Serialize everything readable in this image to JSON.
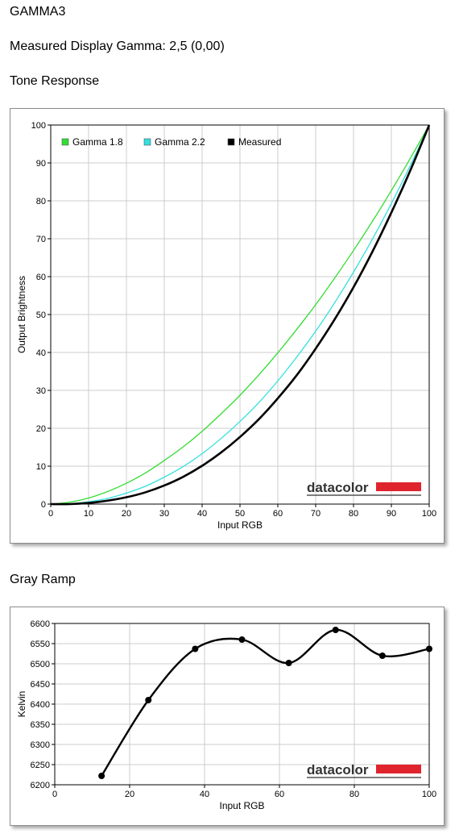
{
  "header": {
    "profile_name": "GAMMA3",
    "gamma_text": "Measured Display Gamma: 2,5 (0,00)",
    "tone_section_title": "Tone Response",
    "gray_section_title": "Gray Ramp"
  },
  "brand": {
    "logo_text": "datacolor",
    "logo_bar_color": "#e0242e"
  },
  "colors": {
    "gamma18": "#33dd33",
    "gamma22": "#33e0e0",
    "measured": "#000000",
    "grid": "#cccccc"
  },
  "chart_data": [
    {
      "type": "line",
      "xlabel": "Input RGB",
      "ylabel": "Output Brightness",
      "xlim": [
        0,
        100
      ],
      "ylim": [
        0,
        100
      ],
      "x_ticks": [
        0,
        10,
        20,
        30,
        40,
        50,
        60,
        70,
        80,
        90,
        100
      ],
      "y_ticks": [
        0,
        10,
        20,
        30,
        40,
        50,
        60,
        70,
        80,
        90,
        100
      ],
      "grid": true,
      "legend_position": "top-left",
      "x": [
        0,
        5,
        10,
        15,
        20,
        25,
        30,
        35,
        40,
        45,
        50,
        55,
        60,
        65,
        70,
        75,
        80,
        85,
        90,
        95,
        100
      ],
      "series": [
        {
          "name": "Gamma 1.8",
          "color": "#33dd33",
          "values": [
            0,
            0.5,
            1.6,
            3.3,
            5.5,
            8.2,
            11.5,
            15.1,
            19.2,
            23.8,
            28.7,
            34.1,
            39.9,
            46.1,
            52.6,
            59.6,
            66.9,
            74.6,
            82.7,
            91.2,
            100
          ]
        },
        {
          "name": "Gamma 2.2",
          "color": "#33e0e0",
          "values": [
            0,
            0.1,
            0.6,
            1.5,
            2.9,
            4.7,
            7.1,
            9.9,
            13.3,
            17.3,
            21.8,
            26.8,
            32.5,
            38.8,
            45.6,
            53.1,
            61.2,
            69.9,
            79.3,
            89.3,
            100
          ]
        },
        {
          "name": "Measured",
          "color": "#000000",
          "values": [
            0,
            0,
            0.3,
            0.9,
            1.8,
            3.1,
            4.9,
            7.2,
            10.1,
            13.6,
            17.7,
            22.4,
            27.9,
            34.0,
            41.0,
            48.7,
            57.2,
            66.6,
            76.9,
            88.0,
            100
          ]
        }
      ]
    },
    {
      "type": "line",
      "xlabel": "Input RGB",
      "ylabel": "Kelvin",
      "xlim": [
        0,
        100
      ],
      "ylim": [
        6200,
        6600
      ],
      "x_ticks": [
        0,
        20,
        40,
        60,
        80,
        100
      ],
      "y_ticks": [
        6200,
        6250,
        6300,
        6350,
        6400,
        6450,
        6500,
        6550,
        6600
      ],
      "grid": true,
      "series": [
        {
          "name": "",
          "color": "#000000",
          "x": [
            12.5,
            25,
            37.5,
            50,
            62.5,
            75,
            87.5,
            100
          ],
          "values": [
            6222,
            6410,
            6537,
            6560,
            6502,
            6584,
            6520,
            6537
          ]
        }
      ]
    }
  ]
}
